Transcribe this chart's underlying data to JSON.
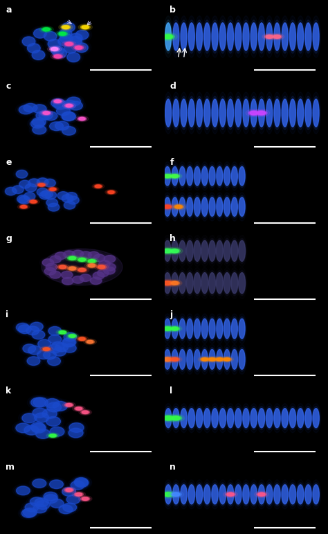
{
  "figsize": [
    4.74,
    7.71
  ],
  "dpi": 100,
  "background": "#000000",
  "n_rows": 7,
  "n_cols": 2,
  "labels": [
    "a",
    "b",
    "c",
    "d",
    "e",
    "f",
    "g",
    "h",
    "i",
    "j",
    "k",
    "l",
    "m",
    "n"
  ],
  "label_color": "#ffffff",
  "label_fontsize": 9,
  "blue": "#1a4acc",
  "blue_light": "#3366ee",
  "scalebar_color": "#ffffff"
}
